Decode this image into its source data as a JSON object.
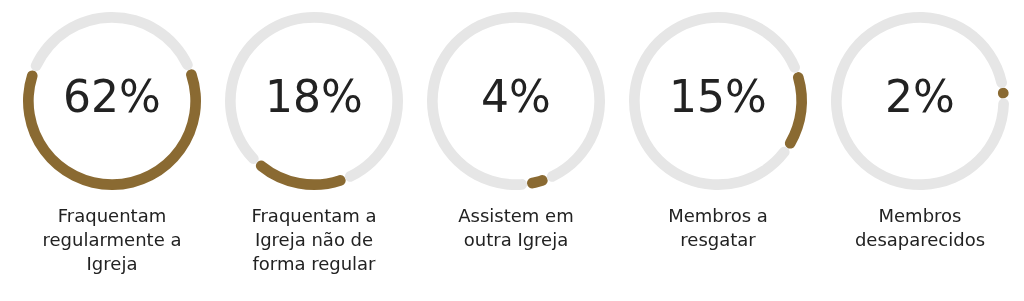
{
  "chart_data": [
    {
      "type": "donut",
      "title": "Fraquentam regularmente a Igreja",
      "categories": [
        null,
        null
      ],
      "values": [
        62,
        38
      ],
      "colors": [
        "#8a6a32",
        "#e6e6e6"
      ],
      "annotations": [
        "62%"
      ]
    },
    {
      "type": "donut",
      "title": "Fraquentam a Igreja não de forma regular",
      "categories": [
        null,
        null
      ],
      "values": [
        18,
        82
      ],
      "colors": [
        "#8a6a32",
        "#e6e6e6"
      ],
      "annotations": [
        "18%"
      ]
    },
    {
      "type": "donut",
      "title": "Assistem em outra Igreja",
      "categories": [
        null,
        null
      ],
      "values": [
        4,
        96
      ],
      "colors": [
        "#8a6a32",
        "#e6e6e6"
      ],
      "annotations": [
        "4%"
      ]
    },
    {
      "type": "donut",
      "title": "Membros a resgatar",
      "categories": [
        null,
        null
      ],
      "values": [
        15,
        85
      ],
      "colors": [
        "#8a6a32",
        "#e6e6e6"
      ],
      "annotations": [
        "15%"
      ]
    },
    {
      "type": "donut",
      "title": "Membros desaparecidos",
      "categories": [
        null,
        null
      ],
      "values": [
        2,
        98
      ],
      "colors": [
        "#8a6a32",
        "#e6e6e6"
      ],
      "annotations": [
        "2%"
      ]
    }
  ]
}
